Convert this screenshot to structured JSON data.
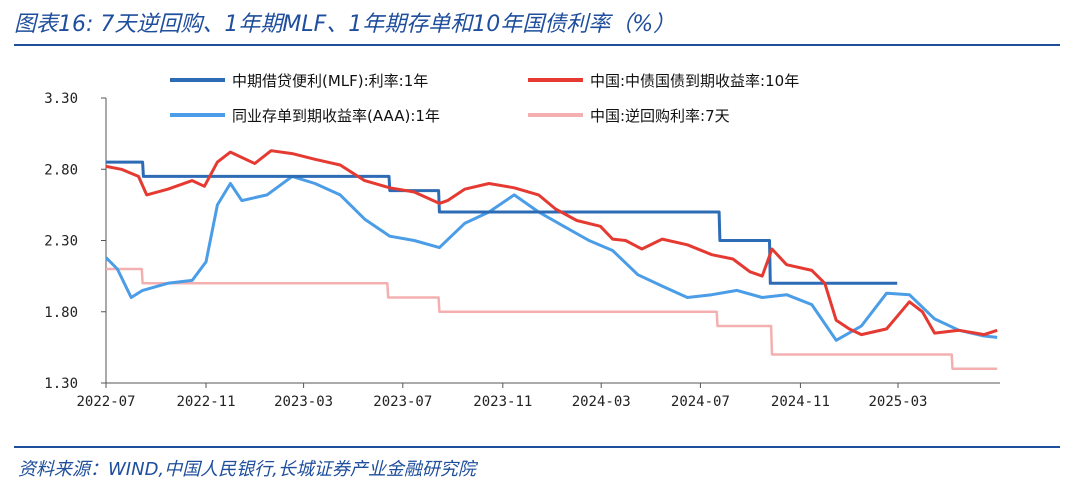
{
  "header": {
    "title": "图表16:  7天逆回购、1年期MLF、1年期存单和10年国债利率（%）"
  },
  "footer": {
    "source": "资料来源：WIND,中国人民银行,长城证券产业金融研究院"
  },
  "chart_data": {
    "type": "line",
    "x_ticks": [
      "2022-07",
      "2022-11",
      "2023-03",
      "2023-07",
      "2023-11",
      "2024-03",
      "2024-07",
      "2024-11",
      "2025-03"
    ],
    "y_ticks": [
      "1.30",
      "1.80",
      "2.30",
      "2.80",
      "3.30"
    ],
    "ylim": [
      1.3,
      3.3
    ],
    "legend_position": "top",
    "series": [
      {
        "name": "中期借贷便利(MLF):利率:1年",
        "color": "#2e6bb5",
        "points": [
          [
            "2022-07-01",
            2.85
          ],
          [
            "2022-08-15",
            2.85
          ],
          [
            "2022-08-16",
            2.75
          ],
          [
            "2023-06-14",
            2.75
          ],
          [
            "2023-06-15",
            2.65
          ],
          [
            "2023-08-14",
            2.65
          ],
          [
            "2023-08-15",
            2.5
          ],
          [
            "2024-07-24",
            2.5
          ],
          [
            "2024-07-25",
            2.3
          ],
          [
            "2024-09-24",
            2.3
          ],
          [
            "2024-09-25",
            2.0
          ],
          [
            "2025-02-28",
            2.0
          ]
        ]
      },
      {
        "name": "中国:中债国债到期收益率:10年",
        "color": "#e53a32",
        "points": [
          [
            "2022-07-01",
            2.82
          ],
          [
            "2022-07-20",
            2.8
          ],
          [
            "2022-08-10",
            2.75
          ],
          [
            "2022-08-20",
            2.62
          ],
          [
            "2022-09-15",
            2.66
          ],
          [
            "2022-10-15",
            2.72
          ],
          [
            "2022-10-30",
            2.68
          ],
          [
            "2022-11-15",
            2.85
          ],
          [
            "2022-12-01",
            2.92
          ],
          [
            "2022-12-31",
            2.84
          ],
          [
            "2023-01-20",
            2.93
          ],
          [
            "2023-02-15",
            2.91
          ],
          [
            "2023-03-15",
            2.87
          ],
          [
            "2023-04-15",
            2.83
          ],
          [
            "2023-05-15",
            2.72
          ],
          [
            "2023-06-15",
            2.67
          ],
          [
            "2023-07-15",
            2.64
          ],
          [
            "2023-08-15",
            2.56
          ],
          [
            "2023-08-25",
            2.58
          ],
          [
            "2023-09-15",
            2.66
          ],
          [
            "2023-10-15",
            2.7
          ],
          [
            "2023-11-15",
            2.67
          ],
          [
            "2023-12-15",
            2.62
          ],
          [
            "2024-01-05",
            2.52
          ],
          [
            "2024-01-31",
            2.44
          ],
          [
            "2024-02-29",
            2.4
          ],
          [
            "2024-03-15",
            2.31
          ],
          [
            "2024-03-31",
            2.3
          ],
          [
            "2024-04-20",
            2.24
          ],
          [
            "2024-05-15",
            2.31
          ],
          [
            "2024-06-15",
            2.27
          ],
          [
            "2024-07-15",
            2.2
          ],
          [
            "2024-08-10",
            2.17
          ],
          [
            "2024-08-31",
            2.08
          ],
          [
            "2024-09-15",
            2.05
          ],
          [
            "2024-09-27",
            2.24
          ],
          [
            "2024-10-15",
            2.13
          ],
          [
            "2024-11-15",
            2.09
          ],
          [
            "2024-12-01",
            2.0
          ],
          [
            "2024-12-15",
            1.74
          ],
          [
            "2024-12-31",
            1.68
          ],
          [
            "2025-01-15",
            1.64
          ],
          [
            "2025-02-15",
            1.68
          ],
          [
            "2025-03-15",
            1.87
          ],
          [
            "2025-03-31",
            1.8
          ],
          [
            "2025-04-15",
            1.65
          ],
          [
            "2025-05-15",
            1.67
          ],
          [
            "2025-06-15",
            1.64
          ],
          [
            "2025-07-01",
            1.67
          ]
        ]
      },
      {
        "name": "同业存单到期收益率(AAA):1年",
        "color": "#4a9de6",
        "points": [
          [
            "2022-07-01",
            2.18
          ],
          [
            "2022-07-15",
            2.1
          ],
          [
            "2022-08-01",
            1.9
          ],
          [
            "2022-08-15",
            1.95
          ],
          [
            "2022-09-15",
            2.0
          ],
          [
            "2022-10-15",
            2.02
          ],
          [
            "2022-11-01",
            2.15
          ],
          [
            "2022-11-15",
            2.55
          ],
          [
            "2022-12-01",
            2.7
          ],
          [
            "2022-12-15",
            2.58
          ],
          [
            "2023-01-15",
            2.62
          ],
          [
            "2023-02-15",
            2.75
          ],
          [
            "2023-03-15",
            2.7
          ],
          [
            "2023-04-15",
            2.62
          ],
          [
            "2023-05-15",
            2.45
          ],
          [
            "2023-06-15",
            2.33
          ],
          [
            "2023-07-15",
            2.3
          ],
          [
            "2023-08-15",
            2.25
          ],
          [
            "2023-09-15",
            2.42
          ],
          [
            "2023-10-15",
            2.5
          ],
          [
            "2023-11-15",
            2.62
          ],
          [
            "2023-12-15",
            2.5
          ],
          [
            "2024-01-15",
            2.4
          ],
          [
            "2024-02-15",
            2.3
          ],
          [
            "2024-03-15",
            2.23
          ],
          [
            "2024-04-15",
            2.06
          ],
          [
            "2024-05-15",
            1.98
          ],
          [
            "2024-06-15",
            1.9
          ],
          [
            "2024-07-15",
            1.92
          ],
          [
            "2024-08-15",
            1.95
          ],
          [
            "2024-09-15",
            1.9
          ],
          [
            "2024-10-15",
            1.92
          ],
          [
            "2024-11-15",
            1.85
          ],
          [
            "2024-12-15",
            1.6
          ],
          [
            "2025-01-15",
            1.7
          ],
          [
            "2025-02-15",
            1.93
          ],
          [
            "2025-03-15",
            1.92
          ],
          [
            "2025-04-15",
            1.75
          ],
          [
            "2025-05-15",
            1.67
          ],
          [
            "2025-06-15",
            1.63
          ],
          [
            "2025-07-01",
            1.62
          ]
        ]
      },
      {
        "name": "中国:逆回购利率:7天",
        "color": "#f4b0b0",
        "points": [
          [
            "2022-07-01",
            2.1
          ],
          [
            "2022-08-14",
            2.1
          ],
          [
            "2022-08-15",
            2.0
          ],
          [
            "2023-06-12",
            2.0
          ],
          [
            "2023-06-13",
            1.9
          ],
          [
            "2023-08-14",
            1.9
          ],
          [
            "2023-08-15",
            1.8
          ],
          [
            "2024-07-21",
            1.8
          ],
          [
            "2024-07-22",
            1.7
          ],
          [
            "2024-09-26",
            1.7
          ],
          [
            "2024-09-27",
            1.5
          ],
          [
            "2025-05-06",
            1.5
          ],
          [
            "2025-05-07",
            1.4
          ],
          [
            "2025-07-01",
            1.4
          ]
        ]
      }
    ]
  }
}
